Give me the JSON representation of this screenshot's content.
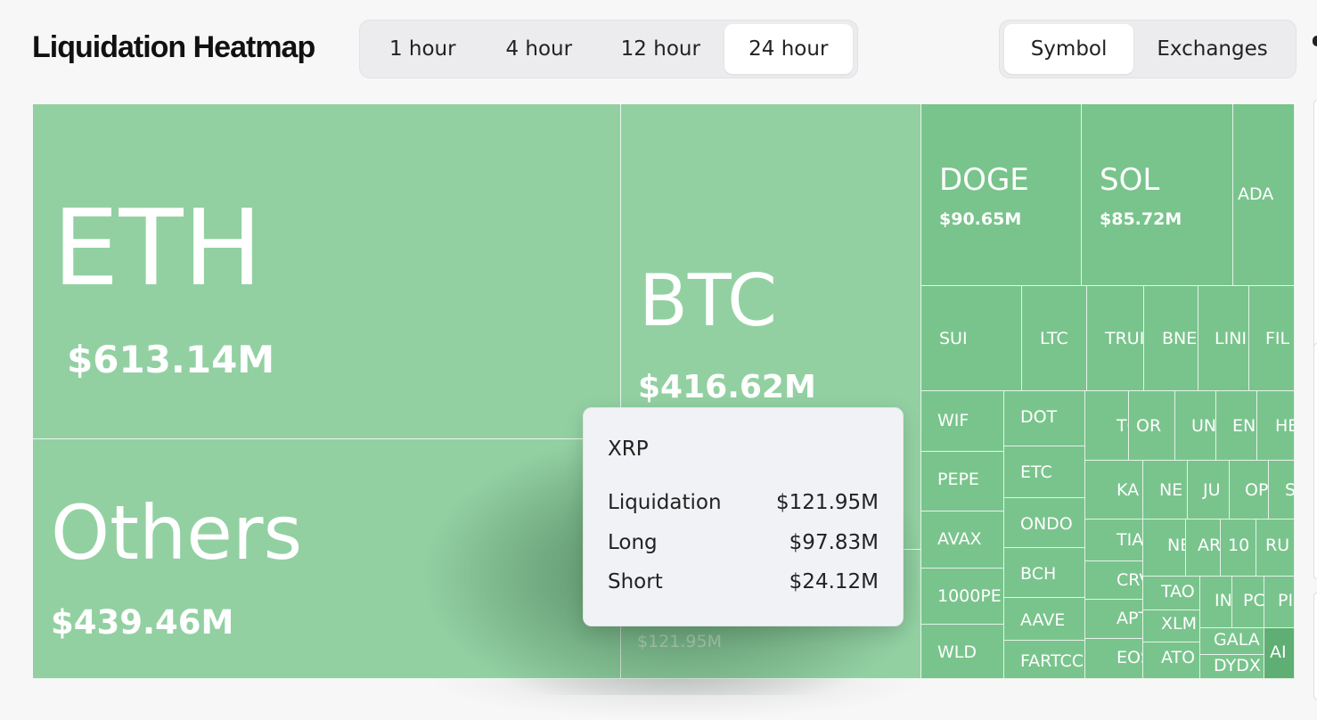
{
  "header": {
    "title": "Liquidation Heatmap",
    "time_ranges": [
      {
        "label": "1 hour",
        "active": false
      },
      {
        "label": "4 hour",
        "active": false
      },
      {
        "label": "12 hour",
        "active": false
      },
      {
        "label": "24 hour",
        "active": true
      }
    ],
    "group_by": [
      {
        "label": "Symbol",
        "active": true
      },
      {
        "label": "Exchanges",
        "active": false
      }
    ]
  },
  "colors": {
    "tile_base": "#79c48c",
    "tile_light": "#92d0a2",
    "tile_dark": "#5fae74",
    "tooltip_bg": "#f1f2f6"
  },
  "treemap": {
    "tiles": [
      {
        "symbol": "ETH",
        "value": "$613.14M"
      },
      {
        "symbol": "Others",
        "value": "$439.46M"
      },
      {
        "symbol": "BTC",
        "value": "$416.62M"
      },
      {
        "symbol": "",
        "value": "$121.95M"
      },
      {
        "symbol": "DOGE",
        "value": "$90.65M"
      },
      {
        "symbol": "SOL",
        "value": "$85.72M"
      },
      {
        "symbol": "ADA",
        "value": ""
      },
      {
        "symbol": "SUI",
        "value": ""
      },
      {
        "symbol": "LTC",
        "value": ""
      },
      {
        "symbol": "TRUI",
        "value": ""
      },
      {
        "symbol": "BNE",
        "value": ""
      },
      {
        "symbol": "LINI",
        "value": ""
      },
      {
        "symbol": "FIL",
        "value": ""
      },
      {
        "symbol": "WIF",
        "value": ""
      },
      {
        "symbol": "DOT",
        "value": ""
      },
      {
        "symbol": "PEPE",
        "value": ""
      },
      {
        "symbol": "ETC",
        "value": ""
      },
      {
        "symbol": "AVAX",
        "value": ""
      },
      {
        "symbol": "ONDO",
        "value": ""
      },
      {
        "symbol": "1000PE",
        "value": ""
      },
      {
        "symbol": "BCH",
        "value": ""
      },
      {
        "symbol": "AAVE",
        "value": ""
      },
      {
        "symbol": "WLD",
        "value": ""
      },
      {
        "symbol": "FARTCC",
        "value": ""
      },
      {
        "symbol": "TOI",
        "value": ""
      },
      {
        "symbol": "OR",
        "value": ""
      },
      {
        "symbol": "UN",
        "value": ""
      },
      {
        "symbol": "EN",
        "value": ""
      },
      {
        "symbol": "HE",
        "value": ""
      },
      {
        "symbol": "KA",
        "value": ""
      },
      {
        "symbol": "NE",
        "value": ""
      },
      {
        "symbol": "JU",
        "value": ""
      },
      {
        "symbol": "OP",
        "value": ""
      },
      {
        "symbol": "SH",
        "value": ""
      },
      {
        "symbol": "TIA",
        "value": ""
      },
      {
        "symbol": "NE",
        "value": ""
      },
      {
        "symbol": "AR",
        "value": ""
      },
      {
        "symbol": "10",
        "value": ""
      },
      {
        "symbol": "RU",
        "value": ""
      },
      {
        "symbol": "CRV",
        "value": ""
      },
      {
        "symbol": "TAO",
        "value": ""
      },
      {
        "symbol": "IN",
        "value": ""
      },
      {
        "symbol": "PC",
        "value": ""
      },
      {
        "symbol": "PI",
        "value": ""
      },
      {
        "symbol": "APT",
        "value": ""
      },
      {
        "symbol": "XLM",
        "value": ""
      },
      {
        "symbol": "GALA",
        "value": ""
      },
      {
        "symbol": "AI",
        "value": ""
      },
      {
        "symbol": "EOS",
        "value": ""
      },
      {
        "symbol": "ATO",
        "value": ""
      },
      {
        "symbol": "DYDX",
        "value": ""
      }
    ]
  },
  "tooltip": {
    "symbol": "XRP",
    "rows": [
      {
        "label": "Liquidation",
        "value": "$121.95M"
      },
      {
        "label": "Long",
        "value": "$97.83M"
      },
      {
        "label": "Short",
        "value": "$24.12M"
      }
    ]
  }
}
